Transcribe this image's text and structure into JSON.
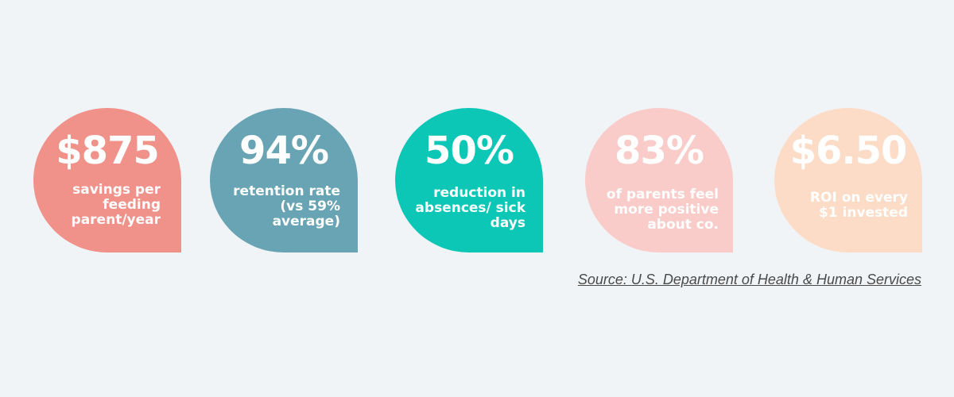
{
  "stats": [
    {
      "value": "$875",
      "label": "savings per feeding parent/year",
      "color": "#f0918a"
    },
    {
      "value": "94%",
      "label": "retention rate (vs 59% average)",
      "color": "#69a4b4"
    },
    {
      "value": "50%",
      "label": "reduction in absences/ sick days",
      "color": "#0cc6b6"
    },
    {
      "value": "83%",
      "label": "of parents feel more positive about co.",
      "color": "#f9ccca"
    },
    {
      "value": "$6.50",
      "label": "ROI on every $1 invested",
      "color": "#fcdcc6"
    }
  ],
  "source": {
    "text": "Source: U.S. Department of Health & Human Services"
  }
}
